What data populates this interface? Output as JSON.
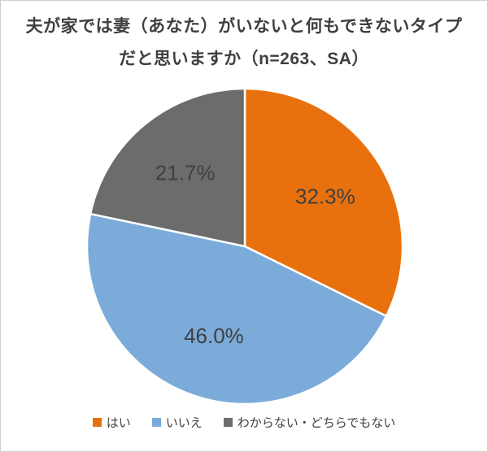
{
  "title": {
    "line1": "夫が家では妻（あなた）がいないと何もできないタイプ",
    "line2": "だと思いますか（n=263、SA）"
  },
  "chart_data": {
    "type": "pie",
    "title": "夫が家では妻（あなた）がいないと何もできないタイプだと思いますか（n=263、SA）",
    "sample_note": "n=263、SA",
    "categories": [
      "はい",
      "いいえ",
      "わからない・どちらでもない"
    ],
    "values": [
      32.3,
      46.0,
      21.7
    ],
    "labels": [
      "32.3%",
      "46.0%",
      "21.7%"
    ],
    "unit": "%",
    "colors": [
      "#e8710e",
      "#7babd9",
      "#6c6c6c"
    ],
    "slice_border_color": "#ffffff",
    "label_color": "#404040",
    "start_angle_deg": 0,
    "direction": "clockwise",
    "legend_position": "bottom"
  }
}
